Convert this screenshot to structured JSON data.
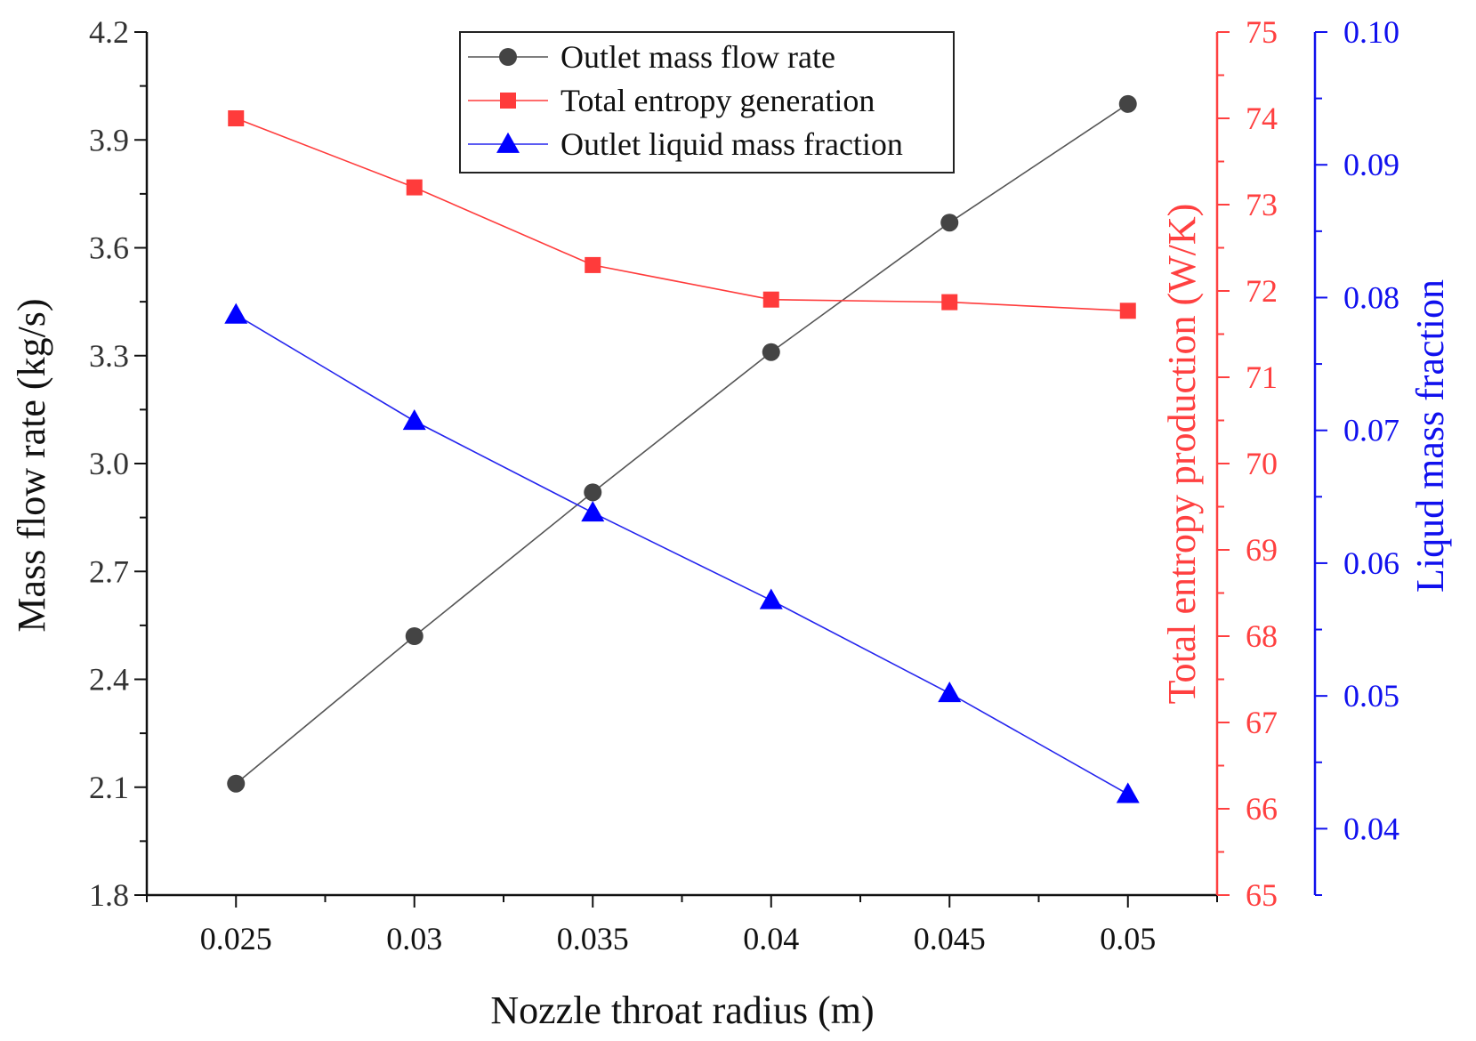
{
  "chart_data": {
    "type": "line",
    "xlabel": "Nozzle throat radius (m)",
    "ylabel_left": "Mass flow rate (kg/s)",
    "ylabel_right1": "Total entropy production (W/K)",
    "ylabel_right2": "Liqud mass fraction",
    "x": [
      0.025,
      0.03,
      0.035,
      0.04,
      0.045,
      0.05
    ],
    "x_tick_labels": [
      "0.025",
      "0.03",
      "0.035",
      "0.04",
      "0.045",
      "0.05"
    ],
    "xlim": [
      0.0225,
      0.0525
    ],
    "ylim_left": [
      1.8,
      4.2
    ],
    "ylim_right1": [
      65,
      75
    ],
    "ylim_right2": [
      0.035,
      0.1
    ],
    "left_ticks": [
      "1.8",
      "2.1",
      "2.4",
      "2.7",
      "3.0",
      "3.3",
      "3.6",
      "3.9",
      "4.2"
    ],
    "right1_ticks": [
      "65",
      "66",
      "67",
      "68",
      "69",
      "70",
      "71",
      "72",
      "73",
      "74",
      "75"
    ],
    "right2_ticks": [
      "0.04",
      "0.05",
      "0.06",
      "0.07",
      "0.08",
      "0.09",
      "0.10"
    ],
    "grid": false,
    "legend_position": "top-center",
    "series": [
      {
        "name": "Outlet mass flow rate",
        "axis": "left",
        "marker": "circle",
        "color": "#444444",
        "line_color": "#555555",
        "values": [
          2.11,
          2.52,
          2.92,
          3.31,
          3.67,
          4.0
        ]
      },
      {
        "name": "Total entropy generation",
        "axis": "right1",
        "marker": "square",
        "color": "#ff3b3b",
        "line_color": "#ff3b3b",
        "values": [
          74.0,
          73.2,
          72.3,
          71.9,
          71.87,
          71.77
        ]
      },
      {
        "name": "Outlet liquid mass fraction",
        "axis": "right2",
        "marker": "triangle",
        "color": "#0000ff",
        "line_color": "#2525ee",
        "values": [
          0.0787,
          0.0707,
          0.0638,
          0.0572,
          0.0502,
          0.0426
        ]
      }
    ],
    "axis_colors": {
      "left": "#111111",
      "right1": "#ff4040",
      "right2": "#1010ee"
    }
  }
}
